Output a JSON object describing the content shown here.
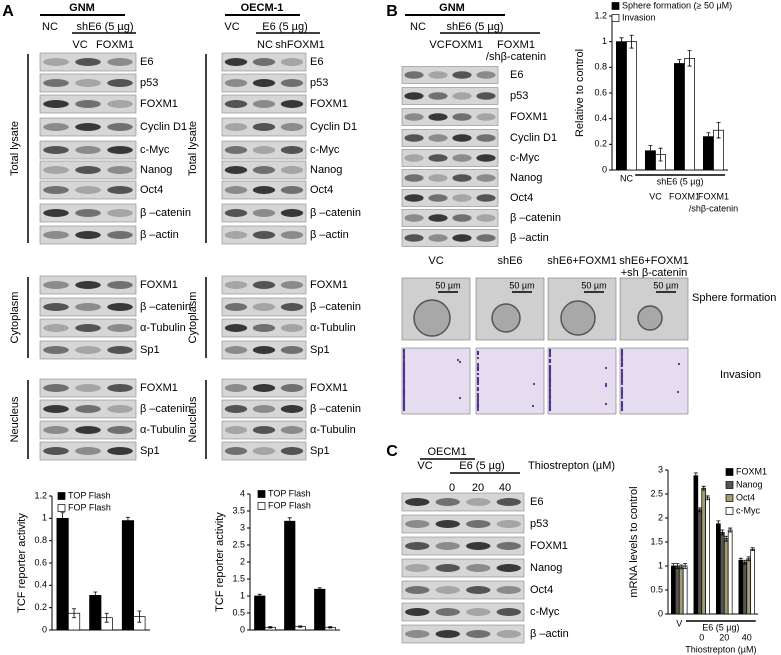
{
  "panel_labels": [
    "A",
    "B",
    "C"
  ],
  "panel_a": {
    "left": {
      "cell_line": "GNM",
      "control": "NC",
      "treatment": "shE6 (5 µg)",
      "lanes": [
        "VC",
        "FOXM1"
      ],
      "sections": [
        {
          "name": "Total lysate",
          "rows": [
            "E6",
            "p53",
            "FOXM1",
            "Cyclin D1",
            "c-Myc",
            "Nanog",
            "Oct4",
            "β –catenin",
            "β –actin"
          ]
        },
        {
          "name": "Cytoplasm",
          "rows": [
            "FOXM1",
            "β –catenin",
            "α-Tubulin",
            "Sp1"
          ]
        },
        {
          "name": "Neucleus",
          "rows": [
            "FOXM1",
            "β –catenin",
            "α-Tubulin",
            "Sp1"
          ]
        }
      ],
      "chart": {
        "type": "bar",
        "ylabel": "TCF reporter activity",
        "ylim": [
          0,
          1.2
        ],
        "yticks": [
          0,
          0.2,
          0.4,
          0.6,
          0.8,
          1,
          1.2
        ],
        "series": [
          {
            "name": "TOP Flash",
            "color": "#000000",
            "values": [
              1.0,
              0.31,
              0.98
            ],
            "errors": [
              0.05,
              0.03,
              0.03
            ]
          },
          {
            "name": "FOP Flash",
            "color": "#ffffff",
            "values": [
              0.15,
              0.11,
              0.12
            ],
            "errors": [
              0.04,
              0.04,
              0.05
            ]
          }
        ]
      }
    },
    "right": {
      "cell_line": "OECM-1",
      "control": "VC",
      "treatment": "E6 (5 µg)",
      "lanes": [
        "NC",
        "shFOXM1"
      ],
      "sections": [
        {
          "name": "Total lysate",
          "rows": [
            "E6",
            "p53",
            "FOXM1",
            "Cyclin D1",
            "c-Myc",
            "Nanog",
            "Oct4",
            "β –catenin",
            "β –actin"
          ]
        },
        {
          "name": "Cytoplasm",
          "rows": [
            "FOXM1",
            "β –catenin",
            "α-Tubulin",
            "Sp1"
          ]
        },
        {
          "name": "Neucleus",
          "rows": [
            "FOXM1",
            "β –catenin",
            "α-Tubulin",
            "Sp1"
          ]
        }
      ],
      "chart": {
        "type": "bar",
        "ylabel": "TCF reporter activity",
        "ylim": [
          0,
          4
        ],
        "yticks": [
          0,
          0.5,
          1,
          1.5,
          2,
          2.5,
          3,
          3.5,
          4
        ],
        "series": [
          {
            "name": "TOP Flash",
            "color": "#000000",
            "values": [
              1.0,
              3.2,
              1.2
            ],
            "errors": [
              0.05,
              0.1,
              0.04
            ]
          },
          {
            "name": "FOP Flash",
            "color": "#ffffff",
            "values": [
              0.08,
              0.1,
              0.08
            ],
            "errors": [
              0.02,
              0.02,
              0.02
            ]
          }
        ]
      }
    }
  },
  "panel_b": {
    "cell_line": "GNM",
    "control": "NC",
    "treatment": "shE6 (5 µg)",
    "lanes": [
      "VC",
      "FOXM1",
      [
        "FOXM1",
        "/shβ-catenin"
      ]
    ],
    "rows": [
      "E6",
      "p53",
      "FOXM1",
      "Cyclin D1",
      "c-Myc",
      "Nanog",
      "Oct4",
      "β –catenin",
      "β –actin"
    ],
    "chart": {
      "type": "bar",
      "ylabel": "Relative to control",
      "ylim": [
        0,
        1.2
      ],
      "yticks": [
        0,
        0.2,
        0.4,
        0.6,
        0.8,
        1,
        1.2
      ],
      "categories": [
        "NC",
        "VC",
        "FOXM1",
        [
          "FOXM1",
          "/shβ-catenin"
        ]
      ],
      "group_label": "shE6 (5 µg)",
      "series": [
        {
          "name": "Sphere formation (≥ 50 µM)",
          "color": "#000000",
          "values": [
            1.0,
            0.15,
            0.83,
            0.26
          ],
          "errors": [
            0.03,
            0.04,
            0.03,
            0.03
          ]
        },
        {
          "name": "Invasion",
          "color": "#ffffff",
          "values": [
            1.0,
            0.12,
            0.87,
            0.31
          ],
          "errors": [
            0.05,
            0.05,
            0.06,
            0.06
          ]
        }
      ]
    },
    "images": {
      "columns": [
        "VC",
        "shE6",
        "shE6+FOXM1",
        [
          "shE6+FOXM1",
          "+sh β-catenin"
        ]
      ],
      "scale_bar": "50 µm",
      "rows": [
        "Sphere formation",
        "Invasion"
      ]
    }
  },
  "panel_c": {
    "cell_line": "OECM1",
    "control": "VC",
    "treatment": "E6 (5 µg)",
    "doses": [
      0,
      20,
      40
    ],
    "dose_label": "Thiostrepton (µM)",
    "rows": [
      "E6",
      "p53",
      "FOXM1",
      "Nanog",
      "Oct4",
      "c-Myc",
      "β –actin"
    ],
    "chart": {
      "type": "bar",
      "ylabel": "mRNA levels to control",
      "ylim": [
        0,
        3
      ],
      "yticks": [
        0,
        0.5,
        1,
        1.5,
        2,
        2.5,
        3
      ],
      "categories": [
        "V",
        "0",
        "20",
        "40"
      ],
      "group_label": "E6 (5 µg)",
      "xlabel": "Thiostrepton (µM)",
      "series": [
        {
          "name": "FOXM1",
          "color": "#000000",
          "values": [
            1.0,
            2.88,
            1.88,
            1.12
          ],
          "errors": [
            0.05,
            0.06,
            0.06,
            0.04
          ]
        },
        {
          "name": "Nanog",
          "color": "#555555",
          "values": [
            1.0,
            2.17,
            1.7,
            1.08
          ],
          "errors": [
            0.05,
            0.04,
            0.05,
            0.04
          ]
        },
        {
          "name": "Oct4",
          "color": "#a39c72",
          "values": [
            0.98,
            2.62,
            1.57,
            1.15
          ],
          "errors": [
            0.04,
            0.04,
            0.05,
            0.04
          ]
        },
        {
          "name": "c-Myc",
          "color": "#ffffff",
          "values": [
            1.0,
            2.42,
            1.75,
            1.35
          ],
          "errors": [
            0.05,
            0.04,
            0.04,
            0.03
          ]
        }
      ]
    }
  }
}
